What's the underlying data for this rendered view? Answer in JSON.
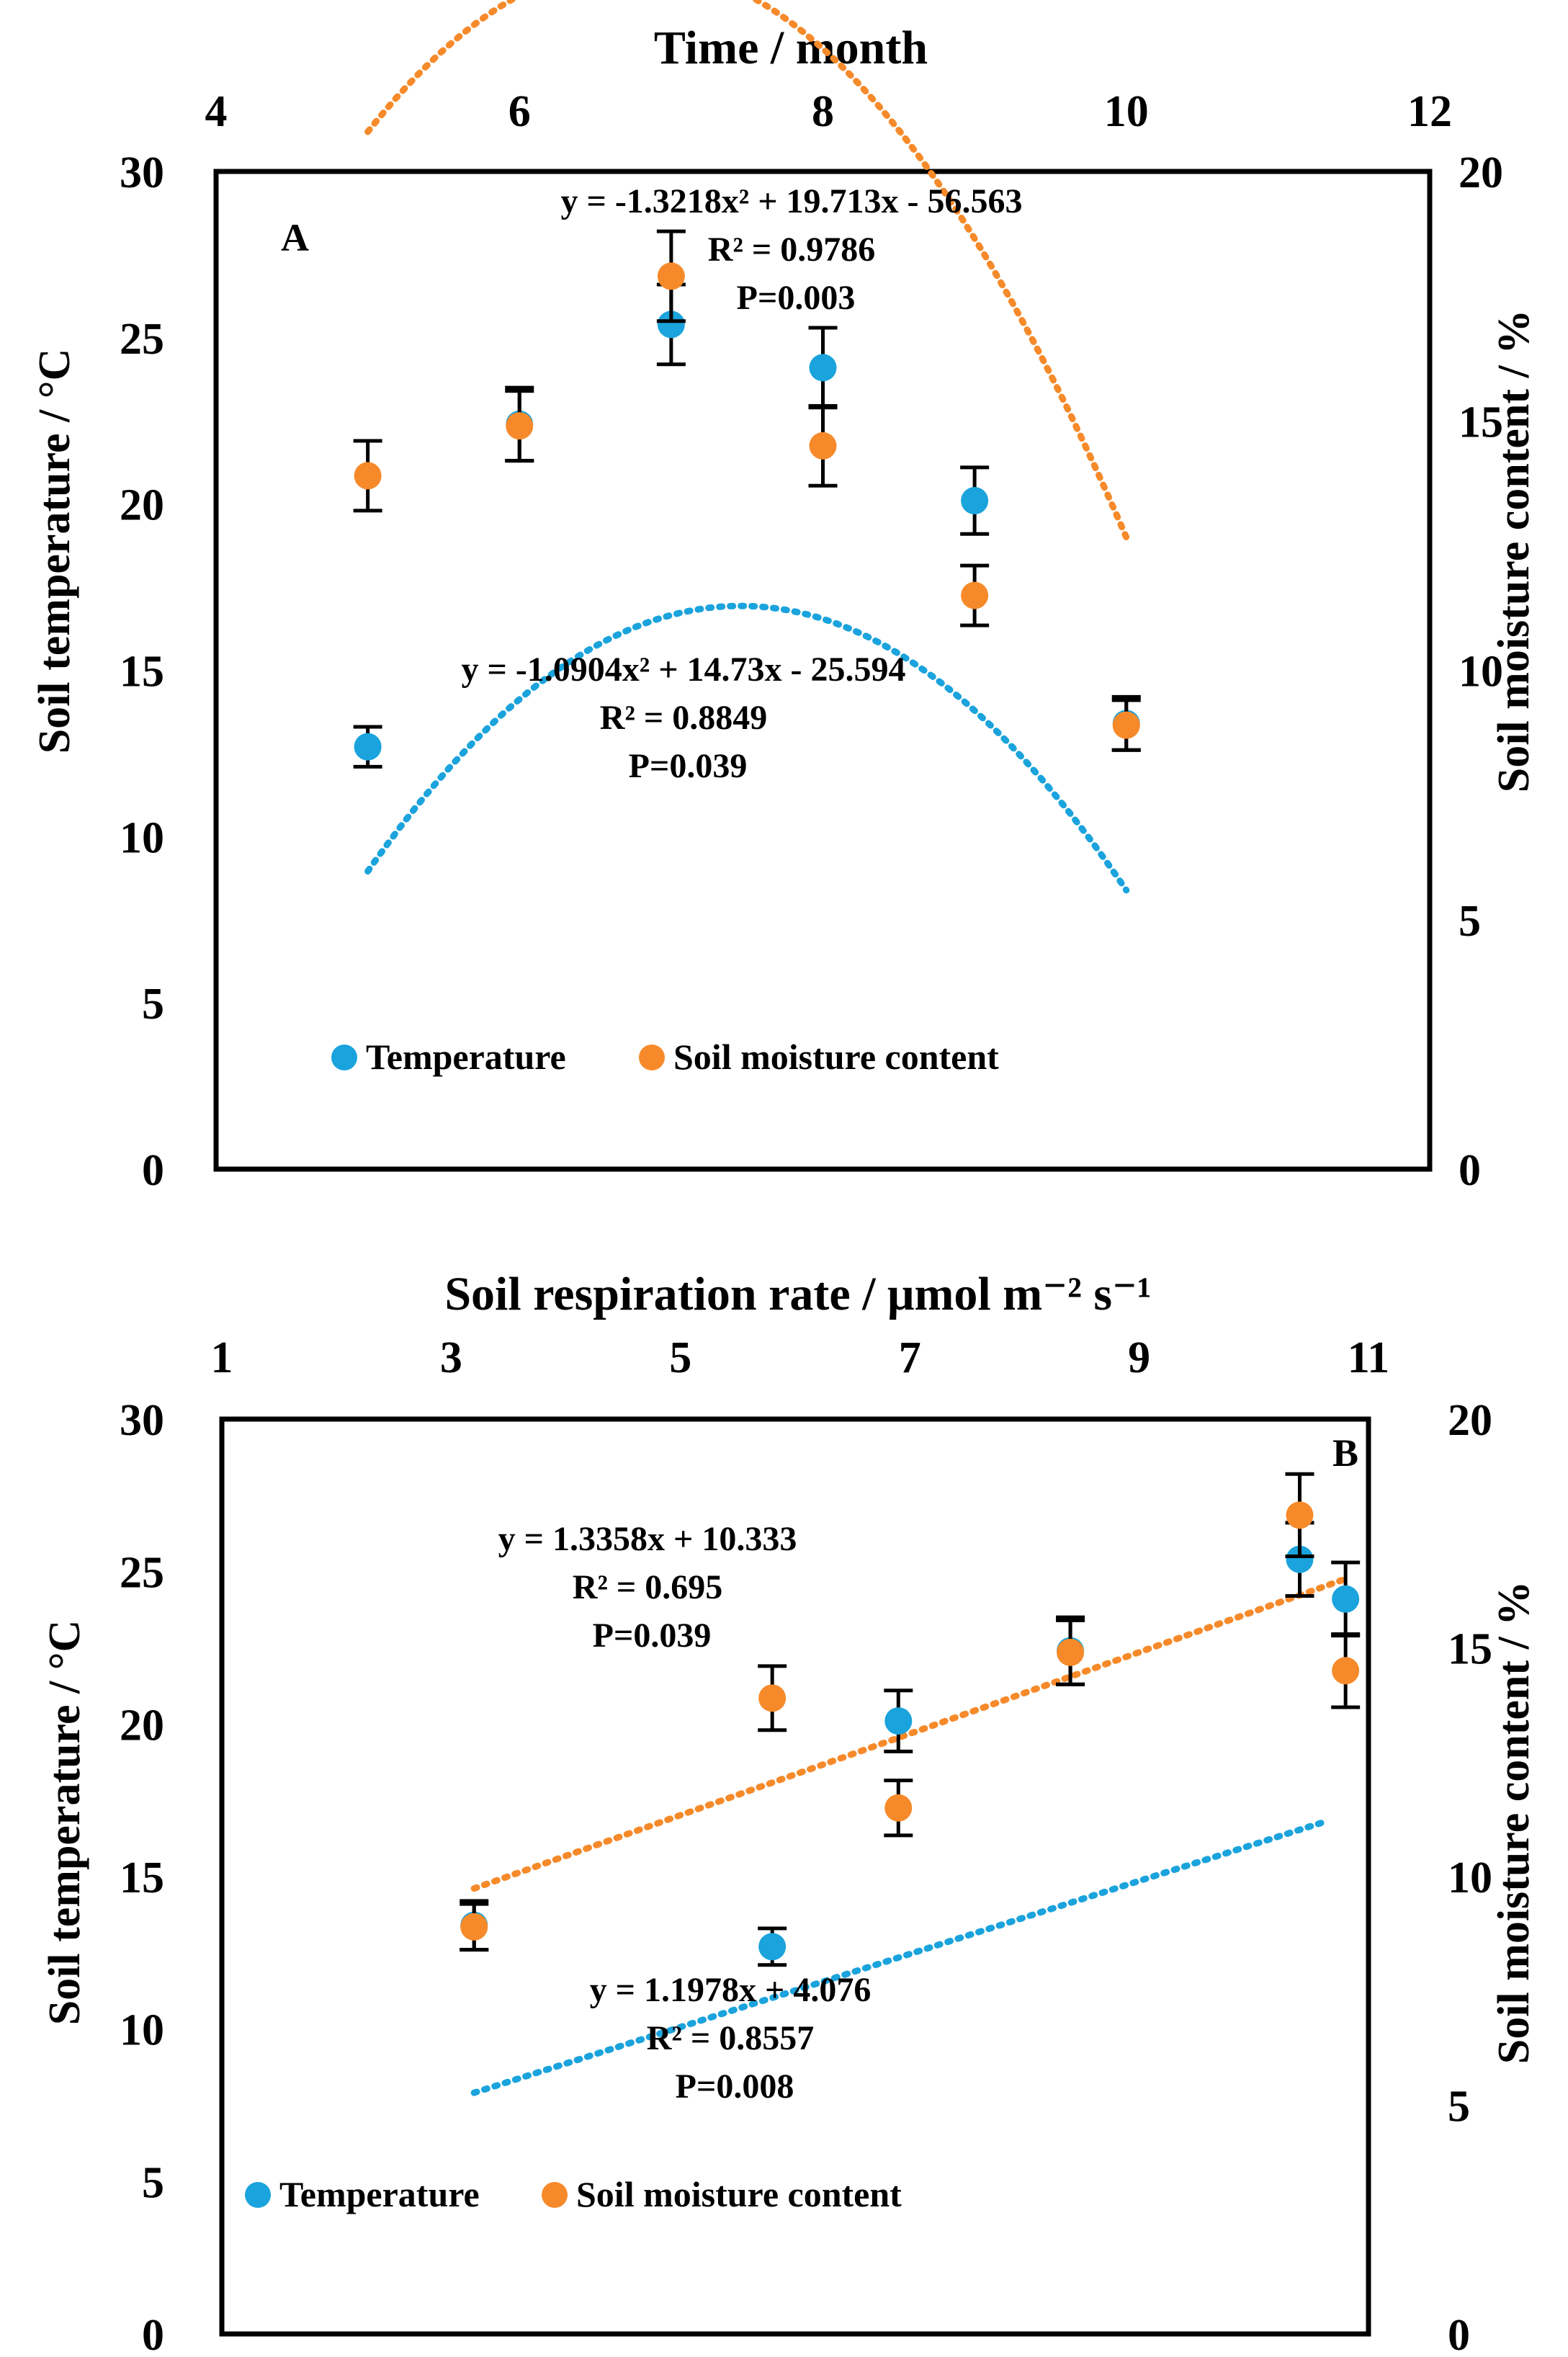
{
  "colors": {
    "temperature": "#1aa3dc",
    "moisture": "#f68a2a",
    "axis": "#000000"
  },
  "chart_data": [
    {
      "type": "scatter",
      "panel_label": "A",
      "top_axis_label": "Time / month",
      "top_ticks": [
        "4",
        "6",
        "8",
        "10",
        "12"
      ],
      "xlim": [
        4,
        12
      ],
      "left_axis_label": "Soil temperature / °C",
      "left_ticks": [
        "0",
        "5",
        "10",
        "15",
        "20",
        "25",
        "30"
      ],
      "ylim_left": [
        0,
        30
      ],
      "right_axis_label": "Soil moisture content / %",
      "right_ticks": [
        "0",
        "5",
        "10",
        "15",
        "20"
      ],
      "ylim_right": [
        0,
        20
      ],
      "legend_position": "bottom-center",
      "series": [
        {
          "name": "Temperature",
          "axis": "left",
          "color_key": "temperature",
          "x": [
            5,
            6,
            7,
            8,
            9,
            10
          ],
          "y": [
            12.7,
            22.4,
            25.4,
            24.1,
            20.1,
            13.4
          ],
          "err": [
            0.6,
            1.1,
            1.2,
            1.2,
            1.0,
            0.8
          ],
          "trend": {
            "type": "poly2",
            "a": -1.3218,
            "b": 19.713,
            "c": -56.563,
            "x_from": 5,
            "x_to": 10
          }
        },
        {
          "name": "Soil moisture content",
          "axis": "right",
          "color_key": "moisture",
          "x": [
            5,
            6,
            7,
            8,
            9,
            10
          ],
          "y": [
            13.9,
            14.9,
            17.9,
            14.5,
            11.5,
            8.9
          ],
          "err": [
            0.7,
            0.7,
            0.9,
            0.8,
            0.6,
            0.5
          ],
          "trend": {
            "type": "poly2",
            "a": -1.0904,
            "b": 14.73,
            "c": -25.594,
            "x_from": 5,
            "x_to": 10
          }
        }
      ],
      "annotations": [
        {
          "lines": [
            "y = -1.3218x² + 19.713x - 56.563",
            "R² = 0.9786",
            "P=0.003"
          ]
        },
        {
          "lines": [
            "y = -1.0904x² + 14.73x - 25.594",
            "R² = 0.8849",
            "P=0.039"
          ]
        }
      ],
      "legend": [
        "Temperature",
        "Soil moisture content"
      ]
    },
    {
      "type": "scatter",
      "panel_label": "B",
      "top_axis_label": "Soil respiration rate / μmol m⁻² s⁻¹",
      "top_ticks": [
        "1",
        "3",
        "5",
        "7",
        "9",
        "11"
      ],
      "xlim": [
        1,
        11
      ],
      "left_axis_label": "Soil temperature / °C",
      "left_ticks": [
        "0",
        "5",
        "10",
        "15",
        "20",
        "25",
        "30"
      ],
      "ylim_left": [
        0,
        30
      ],
      "right_axis_label": "Soil moisture content / %",
      "right_ticks": [
        "0",
        "5",
        "10",
        "15",
        "20"
      ],
      "ylim_right": [
        0,
        20
      ],
      "legend_position": "bottom-left",
      "series": [
        {
          "name": "Temperature",
          "axis": "left",
          "color_key": "temperature",
          "x": [
            3.2,
            5.8,
            6.9,
            8.4,
            10.4,
            10.8
          ],
          "y": [
            13.4,
            12.7,
            20.1,
            22.4,
            25.4,
            24.1
          ],
          "err": [
            0.8,
            0.6,
            1.0,
            1.1,
            1.2,
            1.2
          ],
          "trend": {
            "type": "linear",
            "m": 1.1978,
            "b": 4.076,
            "x_from": 3.2,
            "x_to": 10.6,
            "axis_scale": "left"
          }
        },
        {
          "name": "Soil moisture content",
          "axis": "right",
          "color_key": "moisture",
          "x": [
            3.2,
            5.8,
            6.9,
            8.4,
            10.4,
            10.8
          ],
          "y": [
            8.9,
            13.9,
            11.5,
            14.9,
            17.9,
            14.5
          ],
          "err": [
            0.5,
            0.7,
            0.6,
            0.7,
            0.9,
            0.8
          ],
          "trend": {
            "type": "linear",
            "m": 1.3358,
            "b": 10.333,
            "x_from": 3.2,
            "x_to": 10.8,
            "axis_scale": "left"
          }
        }
      ],
      "annotations": [
        {
          "lines": [
            "y = 1.3358x + 10.333",
            "R² = 0.695",
            "P=0.039"
          ]
        },
        {
          "lines": [
            "y = 1.1978x + 4.076",
            "R² = 0.8557",
            "P=0.008"
          ]
        }
      ],
      "legend": [
        "Temperature",
        "Soil moisture content"
      ]
    }
  ]
}
